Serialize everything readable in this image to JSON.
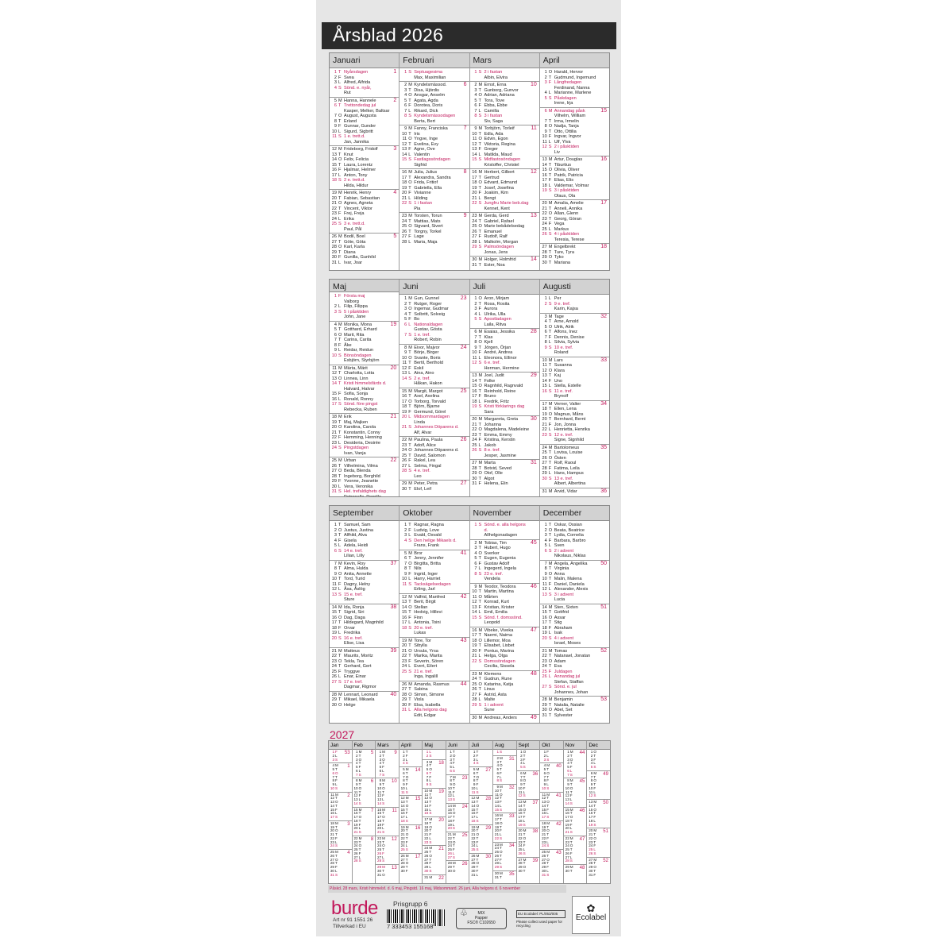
{
  "title": "Årsblad 2026",
  "year": 2026,
  "weekday_letters_sun_first": [
    "S",
    "M",
    "T",
    "O",
    "T",
    "F",
    "L"
  ],
  "colors": {
    "accent": "#c2185b",
    "title_bar": "#2b2b2b",
    "sheet": "#e6e6e6"
  },
  "months": [
    {
      "name": "Januari",
      "days": [
        {
          "h": "Nyårsdagen"
        },
        "Svea",
        "Alfred, Alfrida",
        {
          "h": "Sönd. e. nyår,",
          "n": "Rut"
        },
        "Hanna, Hannele",
        {
          "h": "Trettondedag jul",
          "n": "Kasper, Melker, Baltsar"
        },
        "August, Augusta",
        "Erland",
        "Gunnar, Gunder",
        "Sigurd, Sigbritt",
        {
          "h": "1 e. trett.d.",
          "n": "Jan, Jannika"
        },
        "Frideborg, Fridolf",
        "Knut",
        "Felix, Felicia",
        "Laura, Lorentz",
        "Hjalmar, Helmer",
        "Anton, Tony",
        {
          "h": "2 e. trett.d.",
          "n": "Hilda, Hildur"
        },
        "Henrik, Henry",
        "Fabian, Sebastian",
        "Agnes, Agneta",
        "Vincent, Viktor",
        "Frej, Freja",
        "Erika",
        {
          "h": "3 e. trett.d.",
          "n": "Paul, Pål"
        },
        "Bodil, Boel",
        "Göte, Göta",
        "Karl, Karla",
        "Diana",
        "Gunilla, Gunhild",
        "Ivar, Joar"
      ]
    },
    {
      "name": "Februari",
      "days": [
        {
          "h": "Septuagesima",
          "n": "Max, Maximilian"
        },
        "Kyndelsmässod.",
        "Disa, Hjördis",
        "Ansgar, Anselm",
        "Agata, Agda",
        "Dorotea, Doris",
        "Rikard, Dick",
        {
          "h": "Kyndelsmässodagen",
          "n": "Berta, Bert"
        },
        "Fanny, Franciska",
        "Iris",
        "Yngve, Inge",
        "Evelina, Evy",
        "Agne, Ove",
        "Valentin",
        {
          "h": "Fastlagssöndagen",
          "n": "Sigfrid"
        },
        "Julia, Julius",
        "Alexandra, Sandra",
        "Frida, Fritiof",
        "Gabriella, Ella",
        "Vivianne",
        "Hilding",
        {
          "h": "1 i fastan",
          "n": "Pia"
        },
        "Torsten, Torun",
        "Mattias, Mats",
        "Sigvard, Sivert",
        "Torgny, Torkel",
        "Lage",
        "Maria, Maja"
      ]
    },
    {
      "name": "Mars",
      "days": [
        {
          "h": "2 i fastan",
          "n": "Albin, Elvira"
        },
        "Ernst, Erna",
        "Gunborg, Gunvor",
        "Adrian, Adriana",
        "Tora, Tove",
        "Ebba, Ebbe",
        "Camilla",
        {
          "h": "3 i fastan",
          "n": "Siv, Saga"
        },
        "Torbjörn, Torleif",
        "Edla, Ada",
        "Edvin, Egon",
        "Viktoria, Regina",
        "Greger",
        "Matilda, Maud",
        {
          "h": "Midfastosöndagen",
          "n": "Kristoffer, Christel"
        },
        "Herbert, Gilbert",
        "Gertrud",
        "Edvard, Edmund",
        "Josef, Josefina",
        "Joakim, Kim",
        "Bengt",
        {
          "h": "Jungfru Marie beb.dag",
          "n": "Kennet, Kent"
        },
        "Gerda, Gerd",
        "Gabriel, Rafael",
        "Marie bebådelsedag",
        "Emanuel",
        "Rudolf, Ralf",
        "Malkolm, Morgan",
        {
          "h": "Palmsöndagen",
          "n": "Jonas, Jens"
        },
        "Holger, Holmfrid",
        "Ester, Noa"
      ]
    },
    {
      "name": "April",
      "days": [
        "Harald, Hervor",
        "Gudmund, Ingemund",
        {
          "h": "Långfredagen",
          "n": "Ferdinand, Nanna"
        },
        "Marianne, Marlene",
        {
          "h": "Påskdagen",
          "n": "Irene, Irja"
        },
        {
          "h": "Annandag påsk",
          "n": "Vilhelm, William"
        },
        "Irma, Irmelin",
        "Nadja, Tanja",
        "Otto, Ottilia",
        "Ingvar, Ingvor",
        "Ulf, Ylva",
        {
          "h": "2 i påsktiden",
          "n": "Liv"
        },
        "Artur, Douglas",
        "Tiburtius",
        "Olivia, Oliver",
        "Patrik, Patricia",
        "Elias, Elis",
        "Valdemar, Volmar",
        {
          "h": "3 i påsktiden",
          "n": "Olaus, Ola"
        },
        "Amalia, Amelie",
        "Anneli, Annika",
        "Allan, Glenn",
        "Georg, Göran",
        "Vega",
        "Markus",
        {
          "h": "4 i påsktiden",
          "n": "Teresia, Terese"
        },
        "Engelbrekt",
        "Ture, Tyra",
        "Tyko",
        "Mariana"
      ]
    },
    {
      "name": "Maj",
      "days": [
        {
          "h": "Första maj",
          "n": "Valborg"
        },
        "Filip, Filippa",
        {
          "h": "5 i påsktiden",
          "n": "John, Jane"
        },
        "Monika, Mona",
        "Gotthard, Erhard",
        "Marit, Rita",
        "Carina, Carita",
        "Åke",
        "Reidar, Reidun",
        {
          "h": "Bönsöndagen",
          "n": "Esbjörn, Styrbjörn"
        },
        "Märta, Märit",
        "Charlotta, Lotta",
        "Linnea, Linn",
        {
          "h": "Kristi himmelsfärds d.",
          "n": "Halvard, Halvar"
        },
        "Sofia, Sonja",
        "Ronald, Ronny",
        {
          "h": "Sönd. före pingst",
          "n": "Rebecka, Ruben"
        },
        "Erik",
        "Maj, Majken",
        "Karolina, Carola",
        "Konstantin, Conny",
        "Hemming, Henning",
        "Desideria, Desirée",
        {
          "h": "Pingstdagen",
          "n": "Ivan, Vanja"
        },
        "Urban",
        "Vilhelmina, Vilma",
        "Beda, Blenda",
        "Ingeborg, Borghild",
        "Yvonne, Jeanette",
        "Vera, Veronika",
        {
          "h": "Hel. trefaldighets dag",
          "n": "Petronella, Pernilla"
        }
      ]
    },
    {
      "name": "Juni",
      "days": [
        "Gun, Gunnel",
        "Rutger, Roger",
        "Ingemar, Gudmar",
        "Solbritt, Solveig",
        "Bo",
        {
          "h": "Nationaldagen",
          "n": "Gustav, Gösta"
        },
        {
          "h": "1 e. tref.",
          "n": "Robert, Robin"
        },
        "Eivor, Majvor",
        "Börje, Birger",
        "Svante, Boris",
        "Bertil, Berthold",
        "Eskil",
        "Aina, Aino",
        {
          "h": "2 e. tref.",
          "n": "Håkan, Hakon"
        },
        "Margit, Margot",
        "Axel, Axelina",
        "Torborg, Torvald",
        "Björn, Bjarne",
        "Germund, Görel",
        {
          "h": "Midsommardagen",
          "n": "Linda"
        },
        {
          "h": "Johannes Döparens d.",
          "n": "Alf, Alvar"
        },
        "Paulina, Paula",
        "Adolf, Alice",
        "Johannes Döparens d.",
        "David, Salomon",
        "Rakel, Lea",
        "Selma, Fingal",
        {
          "h": "4 e. tref.",
          "n": "Leo"
        },
        "Peter, Petra",
        "Elof, Leif"
      ]
    },
    {
      "name": "Juli",
      "days": [
        "Aron, Mirjam",
        "Rosa, Rosita",
        "Aurora",
        "Ulrika, Ulla",
        {
          "h": "Apostladagen",
          "n": "Laila, Ritva"
        },
        "Esaias, Jessika",
        "Klas",
        "Kjell",
        "Jörgen, Örjan",
        "André, Andrea",
        "Eleonora, Ellinor",
        {
          "h": "6 e. tref.",
          "n": "Herman, Hermine"
        },
        "Joel, Judit",
        "Folke",
        "Ragnhild, Ragnvald",
        "Reinhold, Reine",
        "Bruno",
        "Fredrik, Fritz",
        {
          "h": "Kristi förklarings dag",
          "n": "Sara"
        },
        "Margareta, Greta",
        "Johanna",
        "Magdalena, Madeleine",
        "Emma, Emmy",
        "Kristina, Kerstin",
        "Jakob",
        {
          "h": "8 e. tref.",
          "n": "Jesper, Jasmine"
        },
        "Marta",
        "Botvid, Seved",
        "Olof, Olle",
        "Algot",
        "Helena, Elin"
      ]
    },
    {
      "name": "Augusti",
      "days": [
        "Per",
        {
          "h": "9 e. tref.",
          "n": "Karin, Kajsa"
        },
        "Tage",
        "Arne, Arnold",
        "Ulrik, Alrik",
        "Alfons, Inez",
        "Dennis, Denise",
        "Silvia, Sylvia",
        {
          "h": "10 e. tref.",
          "n": "Roland"
        },
        "Lars",
        "Susanna",
        "Klara",
        "Kaj",
        "Uno",
        "Stella, Estelle",
        {
          "h": "11 e. tref.",
          "n": "Brynolf"
        },
        "Verner, Valter",
        "Ellen, Lena",
        "Magnus, Måns",
        "Bernhard, Bernt",
        "Jon, Jonna",
        "Henrietta, Henrika",
        {
          "h": "12 e. tref.",
          "n": "Signe, Signhild"
        },
        "Bartolomeus",
        "Lovisa, Louise",
        "Östen",
        "Rolf, Raoul",
        "Fatima, Leila",
        "Hans, Hampus",
        {
          "h": "13 e. tref.",
          "n": "Albert, Albertina"
        },
        "Arvid, Vidar"
      ]
    },
    {
      "name": "September",
      "days": [
        "Samuel, Sam",
        "Justus, Justina",
        "Alfhild, Alva",
        "Gisela",
        "Adela, Heidi",
        {
          "h": "14 e. tref.",
          "n": "Lilian, Lilly"
        },
        "Kevin, Roy",
        "Alma, Hulda",
        "Anita, Annette",
        "Tord, Turid",
        "Dagny, Helny",
        "Åsa, Åslög",
        {
          "h": "15 e. tref.",
          "n": "Sture"
        },
        "Ida, Ronja",
        "Sigrid, Siri",
        "Dag, Daga",
        "Hildegard, Magnhild",
        "Orvar",
        "Fredrika",
        {
          "h": "16 e. tref.",
          "n": "Elise, Lisa"
        },
        "Matteus",
        "Maurits, Moritz",
        "Tekla, Tea",
        "Gerhard, Gert",
        "Tryggve",
        "Enar, Einar",
        {
          "h": "17 e. tref.",
          "n": "Dagmar, Rigmor"
        },
        "Lennart, Leonard",
        "Mikael, Mikaela",
        "Helge"
      ]
    },
    {
      "name": "Oktober",
      "days": [
        "Ragnar, Ragna",
        "Ludvig, Love",
        "Evald, Osvald",
        {
          "h": "Den helige Mikaels d.",
          "n": "Frans, Frank"
        },
        "Bror",
        "Jenny, Jennifer",
        "Birgitta, Britta",
        "Nils",
        "Ingrid, Inger",
        "Harry, Harriet",
        {
          "h": "Tacksägelsedagen",
          "n": "Erling, Jarl"
        },
        "Valfrid, Manfred",
        "Berit, Birgit",
        "Stellan",
        "Hedvig, Hillevi",
        "Finn",
        "Antonia, Toini",
        {
          "h": "20 e. tref.",
          "n": "Lukas"
        },
        "Tore, Tor",
        "Sibylla",
        "Ursula, Yrsa",
        "Marika, Marita",
        "Severin, Sören",
        "Evert, Eilert",
        {
          "h": "21 e. tref.",
          "n": "Inga, Ingalill"
        },
        "Amanda, Rasmus",
        "Sabina",
        "Simon, Simone",
        "Viola",
        "Elsa, Isabella",
        {
          "h": "Alla helgons dag",
          "n": "Edit, Edgar"
        }
      ]
    },
    {
      "name": "November",
      "days": [
        {
          "h": "Sönd. e. alla helgons d.",
          "n": "Allhelgonadagen"
        },
        "Tobias, Tim",
        "Hubert, Hugo",
        "Sverker",
        "Eugen, Eugenia",
        "Gustav Adolf",
        "Ingegerd, Ingela",
        {
          "h": "23 e. tref.",
          "n": "Vendela"
        },
        "Teodor, Teodora",
        "Martin, Martina",
        "Mårten",
        "Konrad, Kurt",
        "Kristian, Krister",
        "Emil, Emilia",
        {
          "h": "Sönd. f. domssönd.",
          "n": "Leopold"
        },
        "Vibeke, Viveka",
        "Naemi, Naima",
        "Lillemor, Moa",
        "Elisabet, Lisbet",
        "Pontus, Marina",
        "Helga, Olga",
        {
          "h": "Domssöndagen",
          "n": "Cecilia, Sissela"
        },
        "Klemens",
        "Gudrun, Rune",
        "Katarina, Katja",
        "Linus",
        "Astrid, Asta",
        "Malte",
        {
          "h": "1 i advent",
          "n": "Sune"
        },
        "Andreas, Anders"
      ]
    },
    {
      "name": "December",
      "days": [
        "Oskar, Ossian",
        "Beata, Beatrice",
        "Lydia, Cornelia",
        "Barbara, Barbro",
        "Sven",
        {
          "h": "2 i advent",
          "n": "Nikolaus, Niklas"
        },
        "Angela, Angelika",
        "Virginia",
        "Anna",
        "Malin, Malena",
        "Daniel, Daniela",
        "Alexander, Alexis",
        {
          "h": "3 i advent",
          "n": "Lucia"
        },
        "Sten, Sixten",
        "Gottfrid",
        "Assar",
        "Stig",
        "Abraham",
        "Isak",
        {
          "h": "4 i advent",
          "n": "Israel, Moses"
        },
        "Tomas",
        "Natanael, Jonatan",
        "Adam",
        "Eva",
        {
          "h": "Juldagen"
        },
        {
          "h": "Annandag jul",
          "n": "Stefan, Staffan"
        },
        {
          "h": "Sönd. e. jul",
          "n": "Johannes, Johan"
        },
        "Benjamin",
        "Natalia, Natalie",
        "Abel, Set",
        "Sylvester"
      ]
    }
  ],
  "next_year": {
    "label": "2027",
    "year": 2027,
    "month_names": [
      "Jan",
      "Feb",
      "Mars",
      "April",
      "Maj",
      "Juni",
      "Juli",
      "Aug",
      "Sept",
      "Okt",
      "Nov",
      "Dec"
    ],
    "red_days": [
      "1-1",
      "1-6",
      "3-26",
      "3-29",
      "5-1",
      "5-6",
      "6-26",
      "11-6",
      "12-25"
    ]
  },
  "footer": {
    "note": "Påskd. 28 mars, Kristi himmelsf. d. 6 maj, Pingstd. 16 maj, Midsommard. 26 juni, Alla helgons d. 6 november",
    "brand": "burde",
    "art_nr": "Art nr 91 1551 26",
    "made_in": "Tillverkad i EU",
    "price_group": "Prisgrupp 6",
    "barcode_digits": "7 333453 155168",
    "fsc_mix": "MIX",
    "fsc_paper": "Papper",
    "fsc_code": "FSC® C102650",
    "fsc_label": "FSC",
    "ecolabel_code": "EU Ecolabel: PL/053/005",
    "recycle_note": "Please collect used paper for recycling",
    "ecolabel_eu": "EU",
    "ecolabel_text": "Ecolabel"
  }
}
